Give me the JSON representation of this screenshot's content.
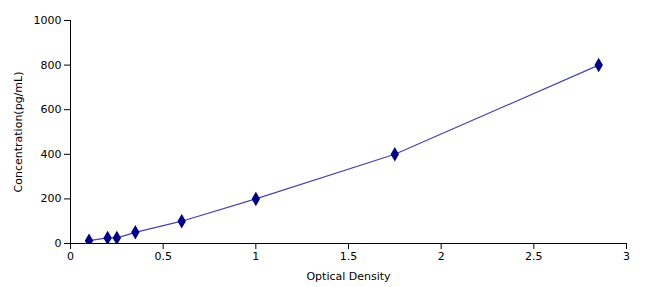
{
  "chart_data": {
    "type": "line",
    "xlabel": "Optical Density",
    "ylabel": "Concentration(pg/mL)",
    "x": [
      0.1,
      0.2,
      0.25,
      0.35,
      0.6,
      1.0,
      1.75,
      2.85
    ],
    "series": [
      {
        "type": "line",
        "color": "#4444aa",
        "values": [
          12.5,
          25,
          25,
          50,
          100,
          200,
          400,
          800
        ]
      },
      {
        "type": "scatter",
        "color": "#00008B",
        "marker": "diamond",
        "values": [
          12.5,
          25,
          25,
          50,
          100,
          200,
          400,
          800
        ],
        "yerr": [
          3,
          5,
          5,
          8,
          10,
          12,
          15,
          20
        ]
      }
    ],
    "xlim": [
      0,
      3.0
    ],
    "ylim": [
      0,
      1000
    ],
    "xticks": [
      0,
      0.5,
      1,
      1.5,
      2,
      2.5,
      3
    ],
    "yticks": [
      0,
      200,
      400,
      600,
      800,
      1000
    ],
    "grid": false
  }
}
